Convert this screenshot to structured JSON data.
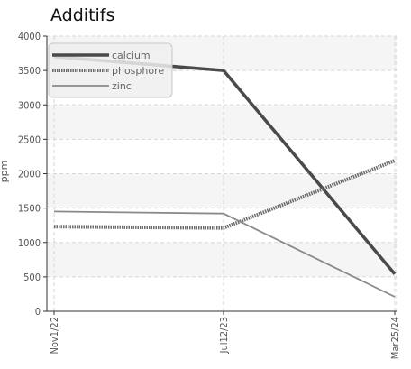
{
  "chart_data": {
    "type": "line",
    "title": "Additifs",
    "ylabel": "ppm",
    "xlabel": "",
    "categories": [
      "Nov1/22",
      "Jul12/23",
      "Mar25/24"
    ],
    "ylim": [
      0,
      4000
    ],
    "yticks": [
      0,
      500,
      1000,
      1500,
      2000,
      2500,
      3000,
      3500,
      4000
    ],
    "grid": true,
    "legend_position": "top-left",
    "series": [
      {
        "name": "calcium",
        "values": [
          3700,
          3500,
          540
        ],
        "color": "#4a4a4a",
        "style": "solid"
      },
      {
        "name": "phosphore",
        "values": [
          1230,
          1210,
          2190
        ],
        "color": "#6a6a6a",
        "style": "dotted"
      },
      {
        "name": "zinc",
        "values": [
          1450,
          1420,
          210
        ],
        "color": "#8a8a8a",
        "style": "thin"
      }
    ]
  }
}
